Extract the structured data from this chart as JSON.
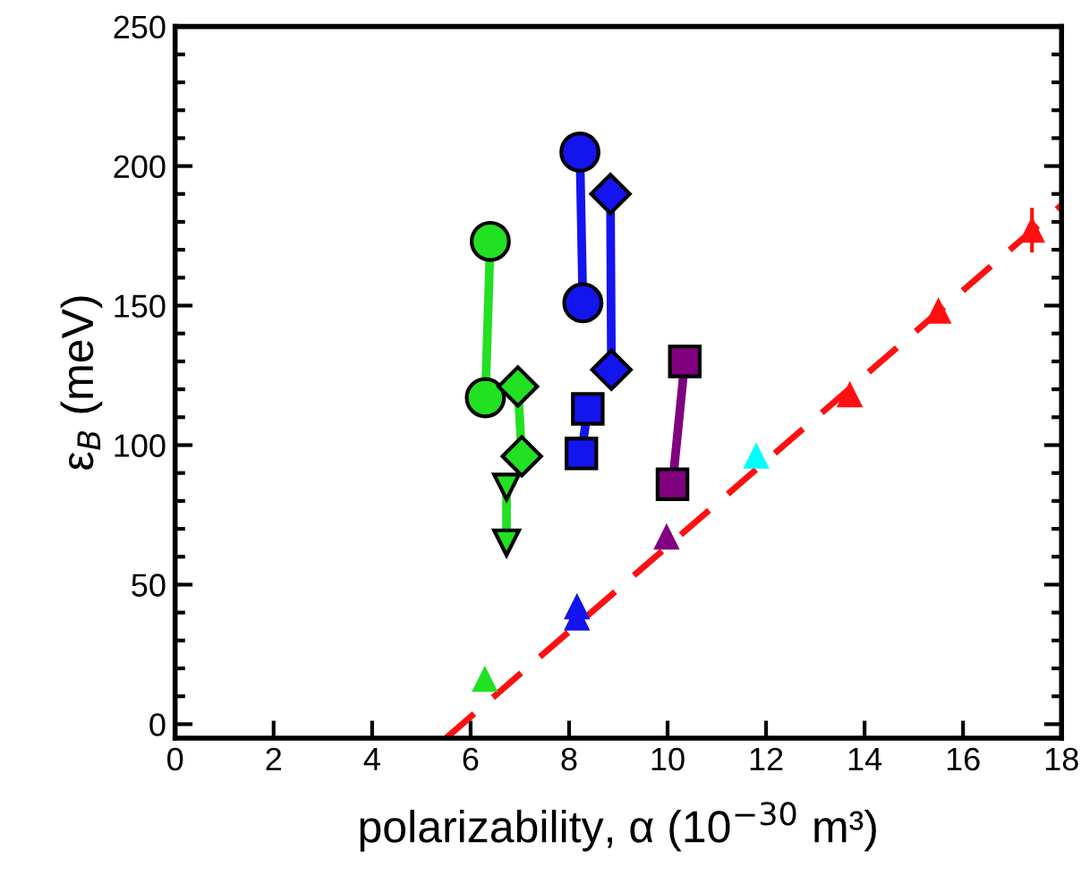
{
  "chart_data": {
    "type": "line",
    "xlabel": "polarizability, α (10$^{−30}$ m³)",
    "ylabel": "ε$_{B}$ (meV)",
    "xlim": [
      0,
      18
    ],
    "ylim": [
      -5,
      250
    ],
    "xticks": [
      0,
      2,
      4,
      6,
      8,
      10,
      12,
      14,
      16,
      18
    ],
    "yticks": [
      0,
      50,
      100,
      150,
      200,
      250
    ],
    "grid": false,
    "series": [
      {
        "marker": "circle",
        "color": "#22e022",
        "x": [
          6.4,
          6.3
        ],
        "values": [
          173,
          117
        ]
      },
      {
        "marker": "diamond",
        "color": "#22e022",
        "x": [
          6.96,
          7.04
        ],
        "values": [
          121,
          96
        ]
      },
      {
        "marker": "triangle_down",
        "color": "#22e022",
        "x": [
          6.73,
          6.73
        ],
        "values": [
          85,
          65
        ]
      },
      {
        "marker": "circle",
        "color": "#1414ee",
        "x": [
          8.22,
          8.28
        ],
        "values": [
          205,
          151
        ]
      },
      {
        "marker": "diamond",
        "color": "#1414ee",
        "x": [
          8.84,
          8.86
        ],
        "values": [
          190,
          127
        ]
      },
      {
        "marker": "square",
        "color": "#1414ee",
        "x": [
          8.38,
          8.25
        ],
        "values": [
          113,
          97
        ]
      },
      {
        "marker": "square",
        "color": "#800080",
        "x": [
          10.35,
          10.1
        ],
        "values": [
          130,
          86
        ]
      },
      {
        "marker": "none",
        "line_style": "dashed",
        "color": "#ff1010",
        "x": [
          5.5,
          18
        ],
        "values": [
          -5,
          186
        ]
      },
      {
        "type": "scatter",
        "marker": "triangle",
        "color": "#22e022",
        "x": [
          6.29
        ],
        "values": [
          16
        ]
      },
      {
        "type": "scatter",
        "marker": "triangle",
        "color": "#1414ee",
        "x": [
          8.16,
          8.16
        ],
        "values": [
          42,
          38
        ]
      },
      {
        "type": "scatter",
        "marker": "triangle",
        "color": "#800080",
        "x": [
          9.98
        ],
        "values": [
          67
        ]
      },
      {
        "type": "scatter",
        "marker": "triangle",
        "color": "#00ffff",
        "x": [
          11.8
        ],
        "values": [
          96
        ]
      },
      {
        "type": "scatter",
        "marker": "triangle",
        "color": "#ff1010",
        "x": [
          13.7,
          15.5,
          17.4
        ],
        "values": [
          118,
          148,
          177
        ],
        "errors": [
          null,
          null,
          8
        ],
        "xerrors": [
          null,
          null,
          0.12
        ]
      }
    ]
  }
}
